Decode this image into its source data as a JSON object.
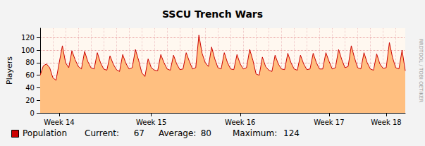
{
  "chart_data": {
    "type": "area",
    "title": "SSCU Trench Wars",
    "y_label": "Players",
    "annotations": [
      "RRDTOOL / TOBI OETIKER"
    ],
    "categories": [
      null,
      null,
      null,
      null,
      null,
      null,
      "Week 14",
      null,
      null,
      null,
      null,
      null,
      null,
      null,
      null,
      null,
      null,
      null,
      null,
      null,
      null,
      null,
      null,
      null,
      null,
      null,
      null,
      null,
      null,
      null,
      null,
      null,
      null,
      null,
      null,
      "Week 15",
      null,
      null,
      null,
      null,
      null,
      null,
      null,
      null,
      null,
      null,
      null,
      null,
      null,
      null,
      null,
      null,
      null,
      null,
      null,
      null,
      null,
      null,
      null,
      null,
      null,
      null,
      null,
      "Week 16",
      null,
      null,
      null,
      null,
      null,
      null,
      null,
      null,
      null,
      null,
      null,
      null,
      null,
      null,
      null,
      null,
      null,
      null,
      null,
      null,
      null,
      null,
      null,
      null,
      null,
      null,
      null,
      "Week 17",
      null,
      null,
      null,
      null,
      null,
      null,
      null,
      null,
      null,
      null,
      null,
      null,
      null,
      null,
      null,
      null,
      null,
      "Week 18",
      null,
      null,
      null,
      null,
      null,
      null
    ],
    "series": [
      {
        "name": "Population",
        "color": "#cc0000",
        "values": [
          60,
          75,
          78,
          72,
          56,
          52,
          80,
          107,
          80,
          72,
          99,
          85,
          74,
          70,
          98,
          82,
          72,
          70,
          96,
          80,
          70,
          68,
          91,
          78,
          69,
          66,
          93,
          79,
          70,
          72,
          101,
          84,
          64,
          58,
          86,
          72,
          68,
          67,
          93,
          80,
          70,
          68,
          92,
          78,
          69,
          70,
          96,
          82,
          70,
          72,
          124,
          95,
          80,
          74,
          105,
          86,
          72,
          70,
          96,
          80,
          70,
          69,
          93,
          78,
          70,
          72,
          101,
          84,
          62,
          60,
          89,
          74,
          68,
          66,
          92,
          78,
          70,
          69,
          95,
          80,
          70,
          68,
          92,
          78,
          69,
          70,
          95,
          80,
          70,
          70,
          96,
          82,
          70,
          72,
          101,
          85,
          72,
          74,
          107,
          88,
          72,
          70,
          96,
          80,
          70,
          68,
          94,
          78,
          71,
          72,
          112,
          88,
          72,
          70,
          100,
          67
        ]
      }
    ],
    "stats": [
      {
        "label": "Current:",
        "value": 67
      },
      {
        "label": "Average:",
        "value": 80
      },
      {
        "label": "Maximum:",
        "value": 124
      }
    ],
    "ylim": [
      0,
      135
    ],
    "yticks": [
      0,
      20,
      40,
      60,
      80,
      100,
      120
    ],
    "grid": true
  }
}
